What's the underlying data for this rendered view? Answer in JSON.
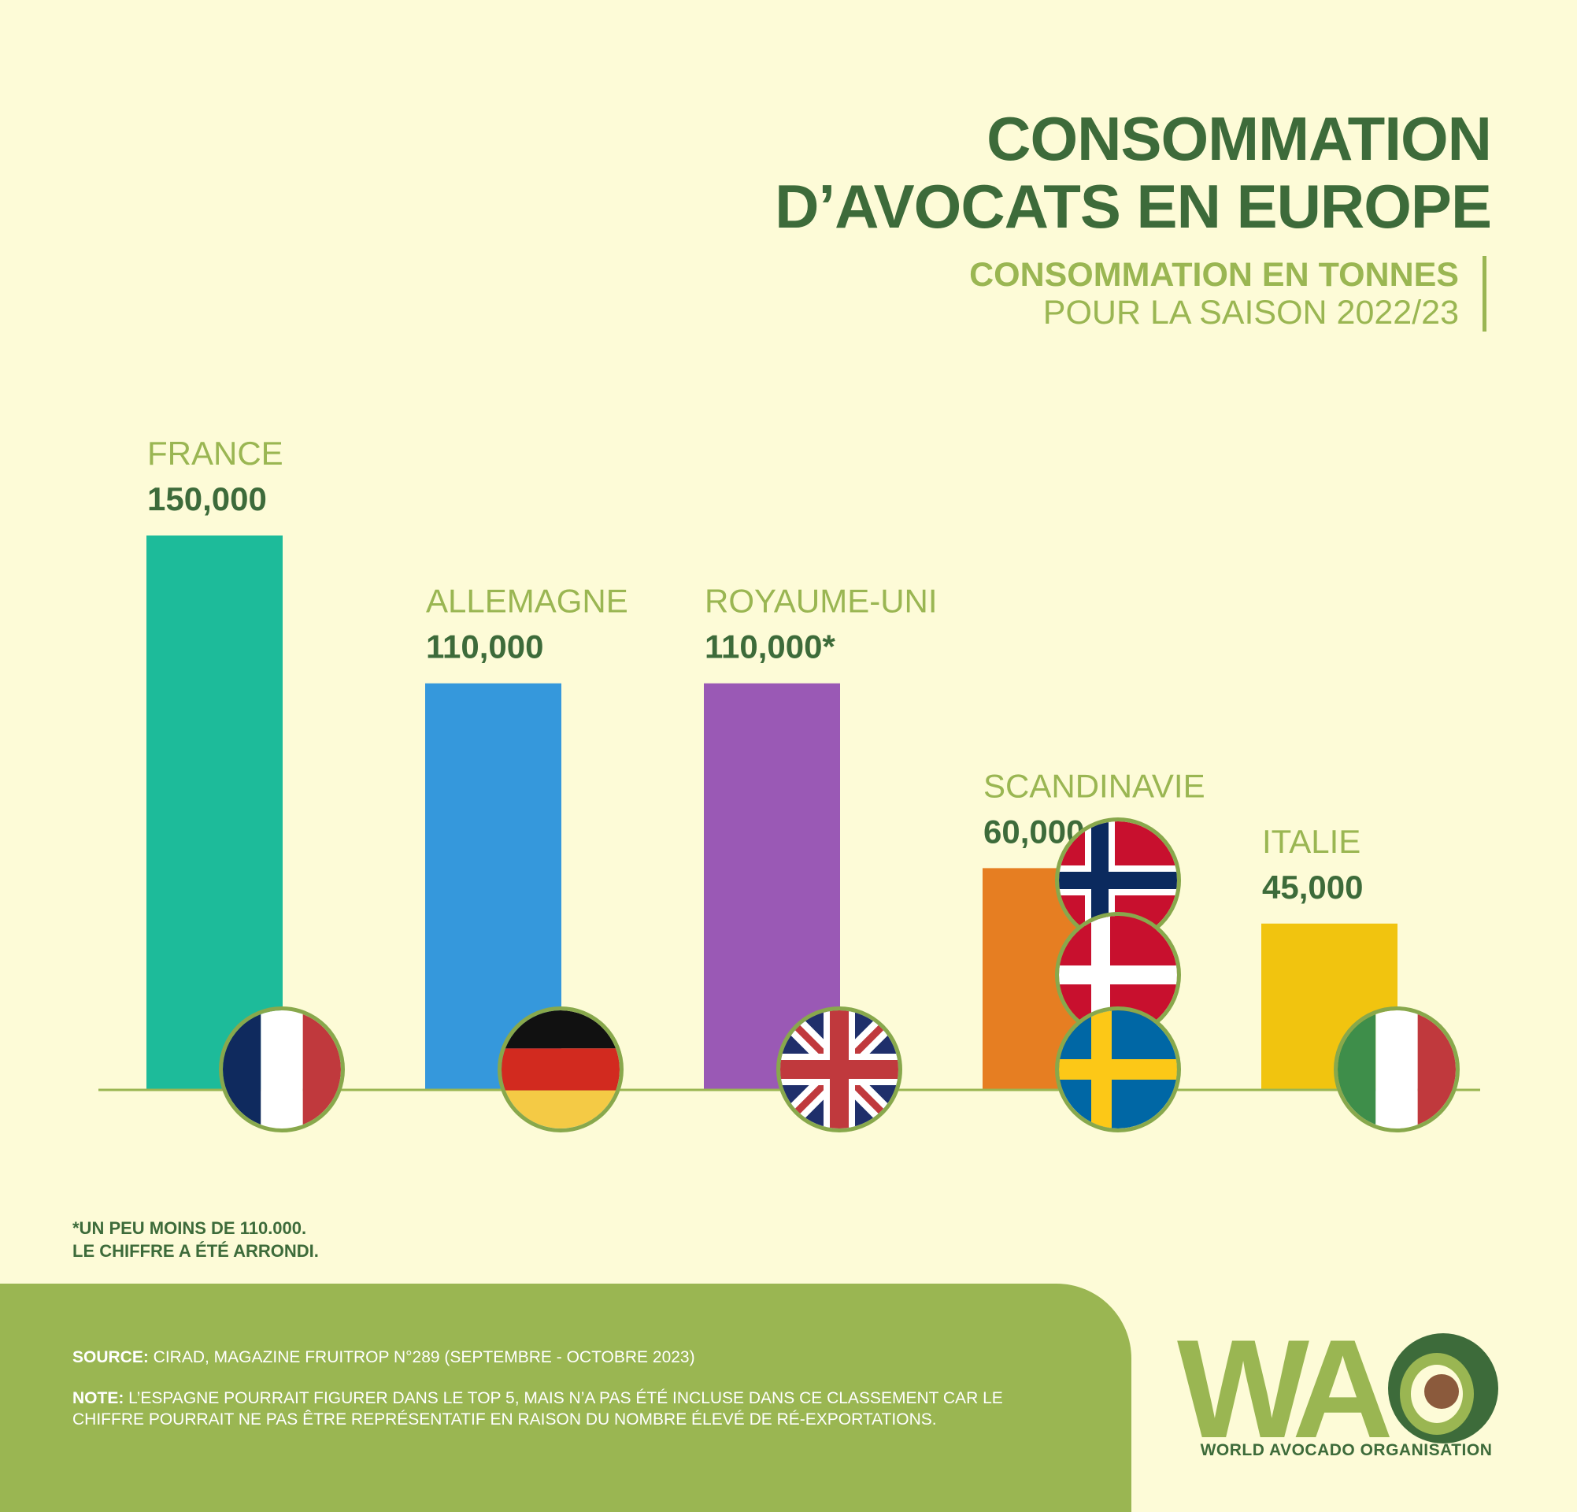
{
  "header": {
    "title_line1": "CONSOMMATION",
    "title_line2": "D’AVOCATS EN EUROPE",
    "subtitle_line1": "CONSOMMATION EN TONNES",
    "subtitle_line2": "POUR LA SAISON 2022/23"
  },
  "chart_data": {
    "type": "bar",
    "title": "CONSOMMATION D’AVOCATS EN EUROPE",
    "subtitle": "CONSOMMATION EN TONNES POUR LA SAISON 2022/23",
    "categories": [
      "FRANCE",
      "ALLEMAGNE",
      "ROYAUME-UNI",
      "SCANDINAVIE",
      "ITALIE"
    ],
    "values": [
      150000,
      110000,
      110000,
      60000,
      45000
    ],
    "value_labels": [
      "150,000",
      "110,000",
      "110,000*",
      "60,000",
      "45,000"
    ],
    "colors": [
      "#1dbb9a",
      "#3598dc",
      "#9a59b5",
      "#e67e22",
      "#f1c40f"
    ],
    "flags": [
      [
        "france-flag"
      ],
      [
        "germany-flag"
      ],
      [
        "uk-flag"
      ],
      [
        "norway-flag",
        "denmark-flag",
        "sweden-flag"
      ],
      [
        "italy-flag"
      ]
    ],
    "ylim": [
      0,
      150000
    ],
    "grid": false,
    "legend": "none"
  },
  "footnote": {
    "line1": "*UN PEU MOINS DE 110.000.",
    "line2": "LE CHIFFRE A ÉTÉ ARRONDI."
  },
  "footer": {
    "source_label": "SOURCE:",
    "source_text": " CIRAD, MAGAZINE FRUITROP N°289 (SEPTEMBRE - OCTOBRE 2023)",
    "note_label": "NOTE:",
    "note_text": " L’ESPAGNE POURRAIT FIGURER DANS LE TOP 5, MAIS N’A PAS ÉTÉ INCLUSE DANS CE CLASSEMENT CAR LE CHIFFRE POURRAIT NE PAS ÊTRE REPRÉSENTATIF EN RAISON DU NOMBRE ÉLEVÉ DE RÉ-EXPORTATIONS."
  },
  "logo": {
    "letters": "WA",
    "caption": "WORLD AVOCADO ORGANISATION"
  },
  "colors": {
    "background": "#fdfbd7",
    "dark_green": "#3d6b3a",
    "light_green": "#9ab652"
  }
}
